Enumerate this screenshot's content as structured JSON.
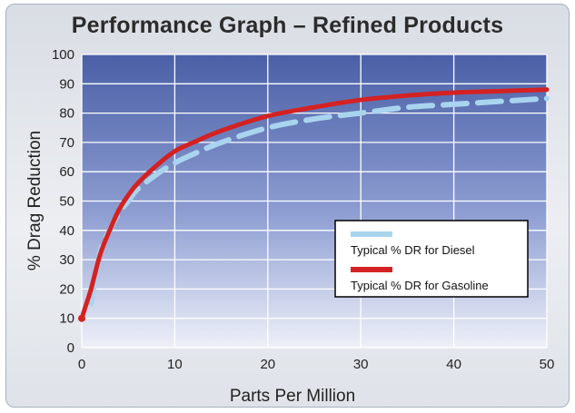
{
  "chart_data": {
    "type": "line",
    "title": "Performance Graph – Refined Products",
    "xlabel": "Parts Per Million",
    "ylabel": "% Drag Reduction",
    "xlim": [
      0,
      50
    ],
    "ylim": [
      0,
      100
    ],
    "xticks": [
      0,
      10,
      20,
      30,
      40,
      50
    ],
    "yticks": [
      0,
      10,
      20,
      30,
      40,
      50,
      60,
      70,
      80,
      90,
      100
    ],
    "grid": true,
    "legend_position": "right-middle",
    "series": [
      {
        "name": "Typical % DR for Diesel",
        "color": "#a9d4ee",
        "style": "dashed",
        "x": [
          1,
          2,
          3,
          4,
          5,
          6,
          8,
          10,
          12,
          15,
          20,
          25,
          30,
          35,
          40,
          45,
          50
        ],
        "y": [
          15,
          33,
          40,
          46,
          50,
          54,
          59,
          63,
          66,
          70,
          75,
          78,
          80,
          82,
          83,
          84,
          85
        ]
      },
      {
        "name": "Typical % DR for Gasoline",
        "color": "#d42222",
        "style": "solid",
        "x": [
          0,
          0.5,
          1,
          2,
          3,
          4,
          5,
          6,
          8,
          10,
          12,
          15,
          20,
          25,
          30,
          35,
          40,
          45,
          50
        ],
        "y": [
          10,
          15,
          20,
          32,
          40,
          47,
          52,
          56,
          62,
          67,
          70,
          74,
          79,
          82,
          84.5,
          86,
          87,
          87.5,
          88
        ]
      }
    ]
  }
}
